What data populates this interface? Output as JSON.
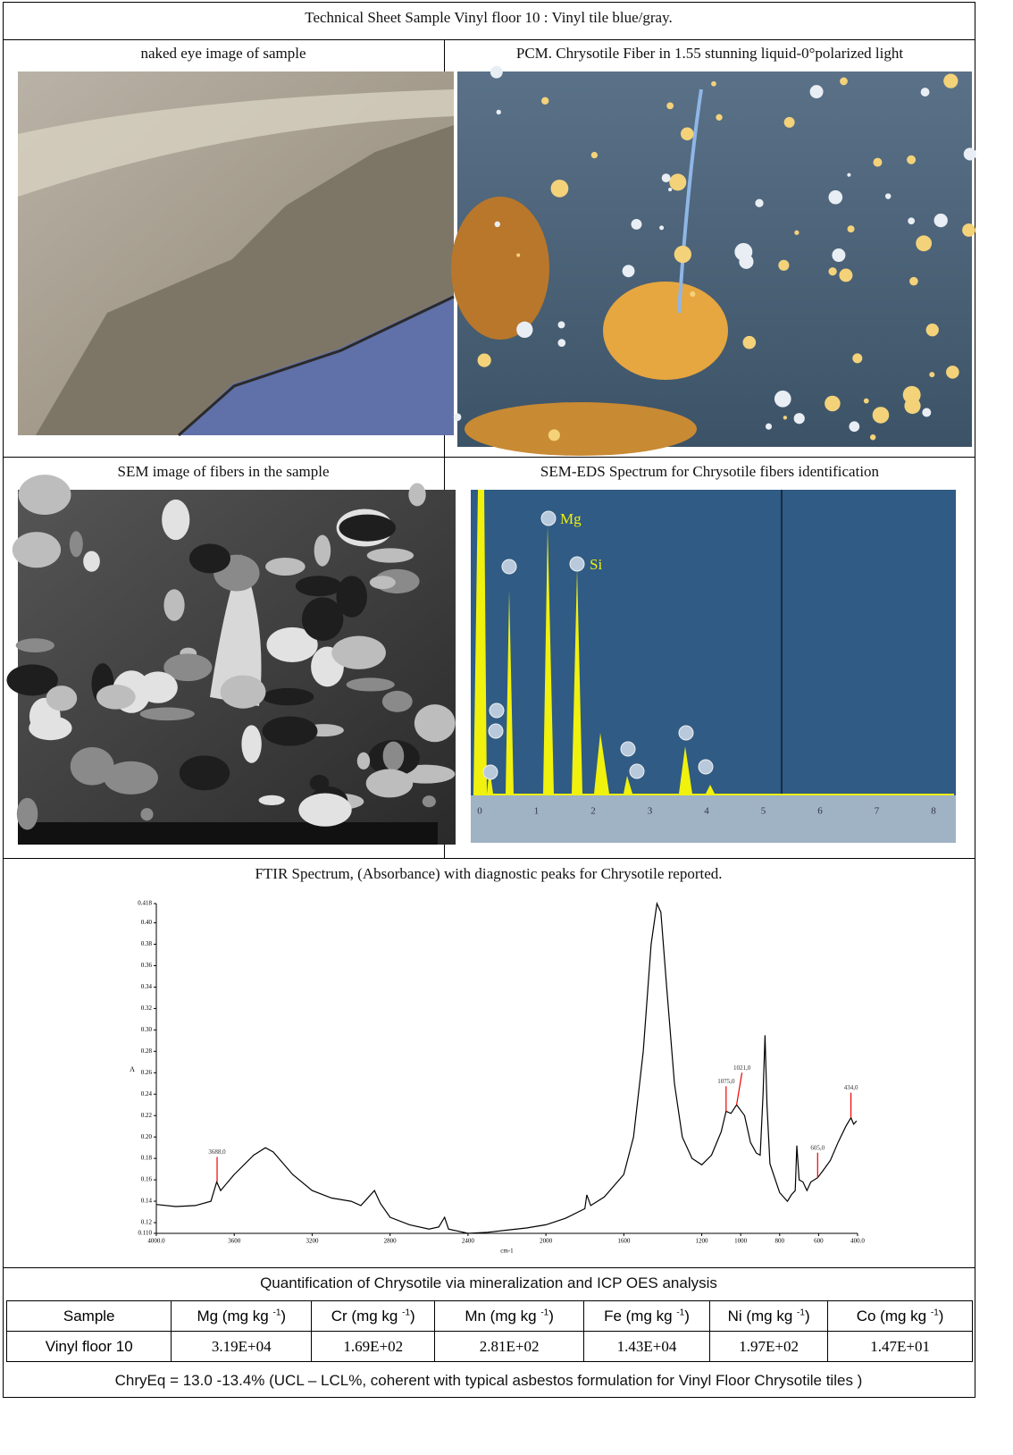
{
  "title": "Technical Sheet Sample Vinyl floor 10    : Vinyl tile blue/gray.",
  "panels": [
    {
      "caption": "naked eye image of sample"
    },
    {
      "caption": "PCM. Chrysotile Fiber in 1.55 stunning liquid-0°polarized light"
    },
    {
      "caption": "SEM image of fibers in the sample"
    },
    {
      "caption": "SEM-EDS Spectrum for Chrysotile fibers identification"
    }
  ],
  "eds": {
    "peak_labels": [
      "Mg",
      "Si"
    ],
    "axis_ticks": [
      0,
      1,
      2,
      3,
      4,
      5,
      6,
      7,
      8
    ]
  },
  "ftir": {
    "type": "line",
    "title": "FTIR Spectrum, (Absorbance) with diagnostic peaks for Chrysotile reported.",
    "x_label": "cm-1",
    "y_label": "A",
    "color": "#000000",
    "xlim": [
      4000,
      400
    ],
    "ylim": [
      0.11,
      0.418
    ],
    "xticks": [
      {
        "value": 4000,
        "label": "4000.0"
      },
      3600,
      3200,
      2800,
      2400,
      2000,
      1600,
      1200,
      1000,
      800,
      600,
      {
        "value": 400,
        "label": "400.0"
      }
    ],
    "yticks": [
      {
        "value": 0.11,
        "label": "0.110"
      },
      0.12,
      0.14,
      0.16,
      0.18,
      {
        "value": 0.2,
        "label": "0.20"
      },
      0.22,
      0.24,
      0.26,
      0.28,
      {
        "value": 0.3,
        "label": "0.30"
      },
      0.32,
      0.34,
      0.36,
      0.38,
      {
        "value": 0.4,
        "label": "0.40"
      },
      0.418
    ],
    "x": [
      4000,
      3900,
      3800,
      3720,
      3690,
      3670,
      3600,
      3500,
      3440,
      3400,
      3300,
      3200,
      3100,
      3000,
      2950,
      2920,
      2880,
      2850,
      2800,
      2700,
      2600,
      2550,
      2520,
      2500,
      2450,
      2400,
      2300,
      2200,
      2100,
      2000,
      1900,
      1800,
      1790,
      1770,
      1700,
      1600,
      1550,
      1500,
      1460,
      1430,
      1410,
      1380,
      1340,
      1300,
      1250,
      1200,
      1150,
      1100,
      1075,
      1050,
      1021,
      980,
      950,
      920,
      900,
      885,
      875,
      865,
      850,
      800,
      760,
      740,
      720,
      712,
      700,
      680,
      660,
      640,
      605,
      580,
      540,
      500,
      460,
      434,
      420,
      405
    ],
    "values": [
      0.137,
      0.135,
      0.136,
      0.14,
      0.158,
      0.15,
      0.165,
      0.183,
      0.19,
      0.186,
      0.165,
      0.15,
      0.143,
      0.14,
      0.136,
      0.142,
      0.15,
      0.138,
      0.125,
      0.118,
      0.114,
      0.116,
      0.125,
      0.114,
      0.112,
      0.11,
      0.111,
      0.113,
      0.115,
      0.118,
      0.124,
      0.133,
      0.146,
      0.136,
      0.144,
      0.165,
      0.2,
      0.28,
      0.38,
      0.418,
      0.41,
      0.34,
      0.25,
      0.2,
      0.18,
      0.174,
      0.183,
      0.205,
      0.224,
      0.222,
      0.23,
      0.22,
      0.195,
      0.185,
      0.183,
      0.24,
      0.295,
      0.23,
      0.175,
      0.148,
      0.14,
      0.146,
      0.15,
      0.192,
      0.16,
      0.158,
      0.15,
      0.158,
      0.162,
      0.168,
      0.178,
      0.195,
      0.21,
      0.218,
      0.212,
      0.215
    ],
    "annotations": [
      {
        "x": 3688,
        "y": 0.158,
        "label": "3688,0"
      },
      {
        "x": 1075,
        "y": 0.224,
        "label": "1075,0"
      },
      {
        "x": 1021,
        "y": 0.23,
        "label": "1021,0"
      },
      {
        "x": 605,
        "y": 0.162,
        "label": "605,0"
      },
      {
        "x": 434,
        "y": 0.218,
        "label": "434,0"
      }
    ]
  },
  "quantification": {
    "caption": "Quantification of Chrysotile via      mineralization and ICP OES analysis",
    "header": [
      {
        "text": "Sample"
      },
      {
        "text": "Mg (mg kg",
        "sup": "-1",
        "end": ")"
      },
      {
        "text": "Cr (mg kg",
        "sup": "-1",
        "end": ")"
      },
      {
        "text": "Mn (mg kg",
        "sup": "-1",
        "end": ")"
      },
      {
        "text": "Fe (mg kg",
        "sup": "-1",
        "end": ")"
      },
      {
        "text": "Ni (mg kg",
        "sup": "-1",
        "end": ")"
      },
      {
        "text": "Co (mg kg",
        "sup": "-1",
        "end": ")"
      }
    ],
    "row": [
      "Vinyl floor 10",
      "3.19E+04",
      "1.69E+02",
      "2.81E+02",
      "1.43E+04",
      "1.97E+02",
      "1.47E+01"
    ],
    "note": "ChryEq = 13.0  -13.4%  (UCL – LCL%, coherent with typical asbestos formulation for Vinyl Floor Chrysotile tiles )"
  }
}
